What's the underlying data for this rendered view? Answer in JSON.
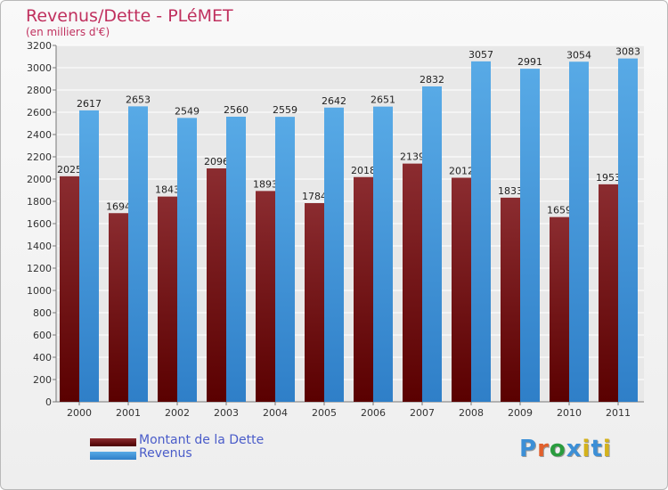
{
  "title": "Revenus/Dette - PLéMET",
  "subtitle": "(en milliers d'€)",
  "chart_data": {
    "type": "bar",
    "categories": [
      "2000",
      "2001",
      "2002",
      "2003",
      "2004",
      "2005",
      "2006",
      "2007",
      "2008",
      "2009",
      "2010",
      "2011"
    ],
    "series": [
      {
        "name": "Montant de la Dette",
        "color": "#7d1a1f",
        "values": [
          2025,
          1694,
          1843,
          2096,
          1893,
          1784,
          2018,
          2139,
          2012,
          1833,
          1659,
          1953
        ]
      },
      {
        "name": "Revenus",
        "color": "#4a9fe0",
        "values": [
          2617,
          2653,
          2549,
          2560,
          2559,
          2642,
          2651,
          2832,
          3057,
          2991,
          3054,
          3083
        ]
      }
    ],
    "ylim": [
      0,
      3200
    ],
    "ytick_step": 200,
    "grid": true,
    "legend": "bottom-left"
  },
  "logo": {
    "text": "Proxiti",
    "letter_colors": [
      "#3c8fd6",
      "#e2602c",
      "#2a9c3e",
      "#3c8fd6",
      "#d4b21c",
      "#3c8fd6",
      "#d4b21c"
    ]
  }
}
